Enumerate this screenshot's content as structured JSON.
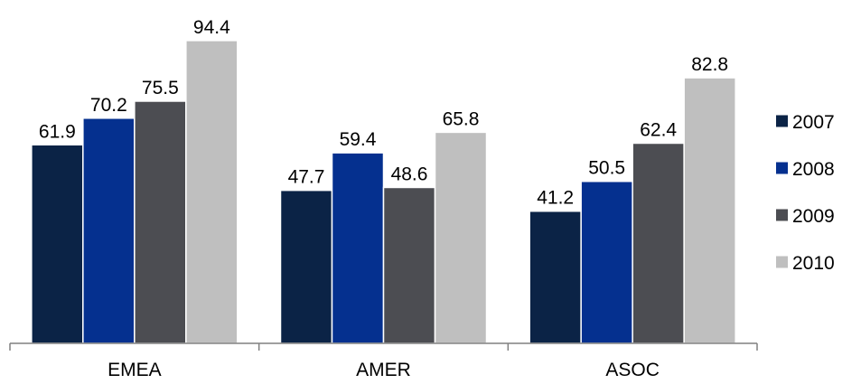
{
  "chart_data": {
    "type": "bar",
    "categories": [
      "EMEA",
      "AMER",
      "ASOC"
    ],
    "series": [
      {
        "name": "2007",
        "values": [
          61.9,
          47.7,
          41.2
        ],
        "color": "#0b2346"
      },
      {
        "name": "2008",
        "values": [
          70.2,
          59.4,
          50.5
        ],
        "color": "#05308f"
      },
      {
        "name": "2009",
        "values": [
          75.5,
          48.6,
          62.4
        ],
        "color": "#4c4d52"
      },
      {
        "name": "2010",
        "values": [
          94.4,
          65.8,
          82.8
        ],
        "color": "#bfbfbf"
      }
    ],
    "title": "",
    "xlabel": "",
    "ylabel": "",
    "ylim": [
      0,
      100
    ],
    "grid": false,
    "legend_position": "right",
    "axis_color": "#808080"
  }
}
